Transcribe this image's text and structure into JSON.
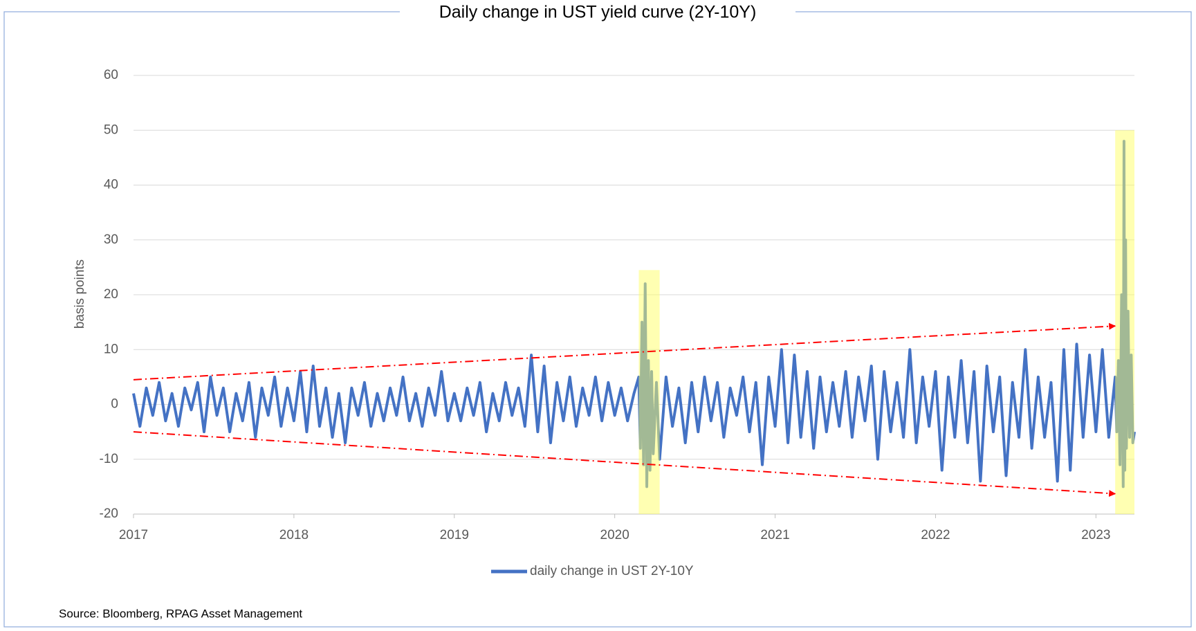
{
  "chart_data": {
    "type": "line",
    "title": "Daily change in UST yield curve (2Y-10Y)",
    "y_label": "basis points",
    "source": "Source: Bloomberg, RPAG Asset Management",
    "xlim": [
      2017,
      2023.24
    ],
    "xticks": [
      2017,
      2018,
      2019,
      2020,
      2021,
      2022,
      2023
    ],
    "ylim": [
      -20,
      60
    ],
    "yticks": [
      -20,
      -10,
      0,
      10,
      20,
      30,
      40,
      50,
      60
    ],
    "grid": true,
    "legend": "bottom",
    "highlight_ranges": [
      [
        2020.15,
        2020.28,
        24.5
      ],
      [
        2023.12,
        2023.24,
        50
      ]
    ],
    "highlight_color": "#ffff66",
    "trend_lines": [
      [
        2017,
        4.5,
        2023.12,
        14.3
      ],
      [
        2017,
        -5,
        2023.12,
        -16.3
      ]
    ],
    "trend_color": "#ff0000",
    "x": [
      2017.0,
      2017.04,
      2017.08,
      2017.12,
      2017.16,
      2017.2,
      2017.24,
      2017.28,
      2017.32,
      2017.36,
      2017.4,
      2017.44,
      2017.48,
      2017.52,
      2017.56,
      2017.6,
      2017.64,
      2017.68,
      2017.72,
      2017.76,
      2017.8,
      2017.84,
      2017.88,
      2017.92,
      2017.96,
      2018.0,
      2018.04,
      2018.08,
      2018.12,
      2018.16,
      2018.2,
      2018.24,
      2018.28,
      2018.32,
      2018.36,
      2018.4,
      2018.44,
      2018.48,
      2018.52,
      2018.56,
      2018.6,
      2018.64,
      2018.68,
      2018.72,
      2018.76,
      2018.8,
      2018.84,
      2018.88,
      2018.92,
      2018.96,
      2019.0,
      2019.04,
      2019.08,
      2019.12,
      2019.16,
      2019.2,
      2019.24,
      2019.28,
      2019.32,
      2019.36,
      2019.4,
      2019.44,
      2019.48,
      2019.52,
      2019.56,
      2019.6,
      2019.64,
      2019.68,
      2019.72,
      2019.76,
      2019.8,
      2019.84,
      2019.88,
      2019.92,
      2019.96,
      2020.0,
      2020.04,
      2020.08,
      2020.12,
      2020.15,
      2020.16,
      2020.17,
      2020.18,
      2020.19,
      2020.2,
      2020.21,
      2020.22,
      2020.23,
      2020.24,
      2020.26,
      2020.28,
      2020.32,
      2020.36,
      2020.4,
      2020.44,
      2020.48,
      2020.52,
      2020.56,
      2020.6,
      2020.64,
      2020.68,
      2020.72,
      2020.76,
      2020.8,
      2020.84,
      2020.88,
      2020.92,
      2020.96,
      2021.0,
      2021.04,
      2021.08,
      2021.12,
      2021.16,
      2021.2,
      2021.24,
      2021.28,
      2021.32,
      2021.36,
      2021.4,
      2021.44,
      2021.48,
      2021.52,
      2021.56,
      2021.6,
      2021.64,
      2021.68,
      2021.72,
      2021.76,
      2021.8,
      2021.84,
      2021.88,
      2021.92,
      2021.96,
      2022.0,
      2022.04,
      2022.08,
      2022.12,
      2022.16,
      2022.2,
      2022.24,
      2022.28,
      2022.32,
      2022.36,
      2022.4,
      2022.44,
      2022.48,
      2022.52,
      2022.56,
      2022.6,
      2022.64,
      2022.68,
      2022.72,
      2022.76,
      2022.8,
      2022.84,
      2022.88,
      2022.92,
      2022.96,
      2023.0,
      2023.04,
      2023.08,
      2023.12,
      2023.13,
      2023.14,
      2023.15,
      2023.16,
      2023.17,
      2023.175,
      2023.18,
      2023.185,
      2023.19,
      2023.2,
      2023.21,
      2023.22,
      2023.23,
      2023.24
    ],
    "series": [
      {
        "name": "daily change in UST 2Y-10Y",
        "color": "#4472c4",
        "values": [
          2,
          -4,
          3,
          -2,
          4,
          -3,
          2,
          -4,
          3,
          -1,
          4,
          -5,
          5,
          -2,
          3,
          -5,
          2,
          -3,
          4,
          -6,
          3,
          -2,
          5,
          -4,
          3,
          -3,
          6,
          -5,
          7,
          -4,
          3,
          -6,
          2,
          -7,
          3,
          -2,
          4,
          -4,
          2,
          -3,
          3,
          -2,
          5,
          -3,
          2,
          -4,
          3,
          -2,
          6,
          -3,
          2,
          -3,
          3,
          -2,
          4,
          -5,
          2,
          -3,
          4,
          -2,
          3,
          -4,
          9,
          -5,
          7,
          -7,
          4,
          -3,
          5,
          -4,
          3,
          -2,
          5,
          -3,
          4,
          -2,
          3,
          -3,
          2,
          5,
          -8,
          15,
          -11,
          22,
          -15,
          8,
          -12,
          6,
          -9,
          4,
          -10,
          5,
          -4,
          3,
          -7,
          4,
          -5,
          5,
          -3,
          4,
          -6,
          3,
          -2,
          5,
          -5,
          4,
          -11,
          5,
          -4,
          10,
          -7,
          9,
          -6,
          6,
          -8,
          5,
          -5,
          4,
          -4,
          6,
          -6,
          5,
          -3,
          7,
          -10,
          6,
          -5,
          4,
          -6,
          10,
          -7,
          5,
          -4,
          6,
          -12,
          5,
          -6,
          8,
          -7,
          6,
          -14,
          7,
          -5,
          5,
          -13,
          4,
          -6,
          10,
          -8,
          5,
          -6,
          4,
          -14,
          10,
          -12,
          11,
          -6,
          9,
          -5,
          10,
          -6,
          5,
          -5,
          8,
          -11,
          20,
          -15,
          48,
          -12,
          30,
          -8,
          17,
          -6,
          9,
          -7,
          -5
        ]
      }
    ]
  }
}
